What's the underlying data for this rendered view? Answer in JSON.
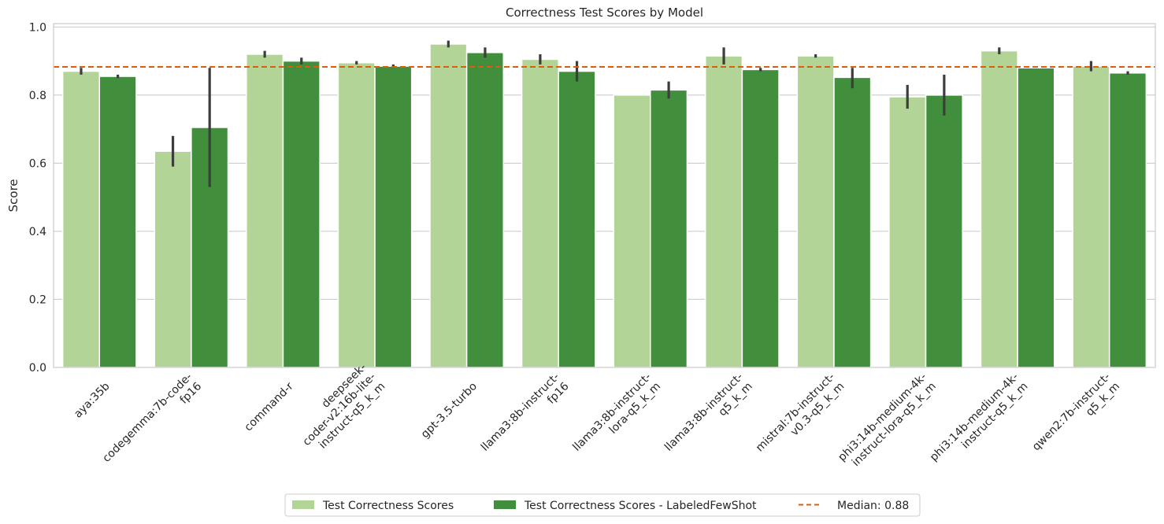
{
  "chart_data": {
    "type": "bar",
    "title": "Correctness Test Scores by Model",
    "xlabel": "",
    "ylabel": "Score",
    "ylim": [
      0,
      1.01
    ],
    "yticks": [
      "0.0",
      "0.2",
      "0.4",
      "0.6",
      "0.8",
      "1.0"
    ],
    "ytick_values": [
      0,
      0.2,
      0.4,
      0.6,
      0.8,
      1.0
    ],
    "grid": "horizontal",
    "legend_position": "bottom-center",
    "categories": [
      [
        "aya:35b"
      ],
      [
        "codegemma:7b-code-",
        "fp16"
      ],
      [
        "command-r"
      ],
      [
        "deepseek-",
        "coder-v2:16b-lite-",
        "instruct-q5_k_m"
      ],
      [
        "gpt-3.5-turbo"
      ],
      [
        "llama3:8b-instruct-",
        "fp16"
      ],
      [
        "llama3:8b-instruct-",
        "lora-q5_k_m"
      ],
      [
        "llama3:8b-instruct-",
        "q5_k_m"
      ],
      [
        "mistral:7b-instruct-",
        "v0.3-q5_k_m"
      ],
      [
        "phi3:14b-medium-4k-",
        "instruct-lora-q5_k_m"
      ],
      [
        "phi3:14b-medium-4k-",
        "instruct-q5_k_m"
      ],
      [
        "qwen2:7b-instruct-",
        "q5_k_m"
      ]
    ],
    "series": [
      {
        "name": "Test Correctness Scores",
        "color": "#b2d496",
        "values": [
          0.87,
          0.635,
          0.92,
          0.895,
          0.95,
          0.905,
          0.8,
          0.915,
          0.915,
          0.795,
          0.93,
          0.885
        ],
        "err_low": [
          0.86,
          0.59,
          0.91,
          0.89,
          0.94,
          0.89,
          0.8,
          0.89,
          0.91,
          0.76,
          0.92,
          0.87
        ],
        "err_high": [
          0.88,
          0.68,
          0.93,
          0.9,
          0.96,
          0.92,
          0.8,
          0.94,
          0.92,
          0.83,
          0.94,
          0.9
        ]
      },
      {
        "name": "Test Correctness Scores - LabeledFewShot",
        "color": "#418f3d",
        "values": [
          0.855,
          0.705,
          0.9,
          0.885,
          0.925,
          0.87,
          0.815,
          0.875,
          0.852,
          0.8,
          0.88,
          0.865
        ],
        "err_low": [
          0.85,
          0.53,
          0.89,
          0.88,
          0.91,
          0.84,
          0.79,
          0.87,
          0.82,
          0.74,
          0.88,
          0.86
        ],
        "err_high": [
          0.86,
          0.88,
          0.91,
          0.89,
          0.94,
          0.9,
          0.84,
          0.88,
          0.88,
          0.86,
          0.88,
          0.87
        ]
      }
    ],
    "reference_line": {
      "label": "Median: 0.88",
      "value": 0.883,
      "color": "#d95f0e"
    }
  }
}
